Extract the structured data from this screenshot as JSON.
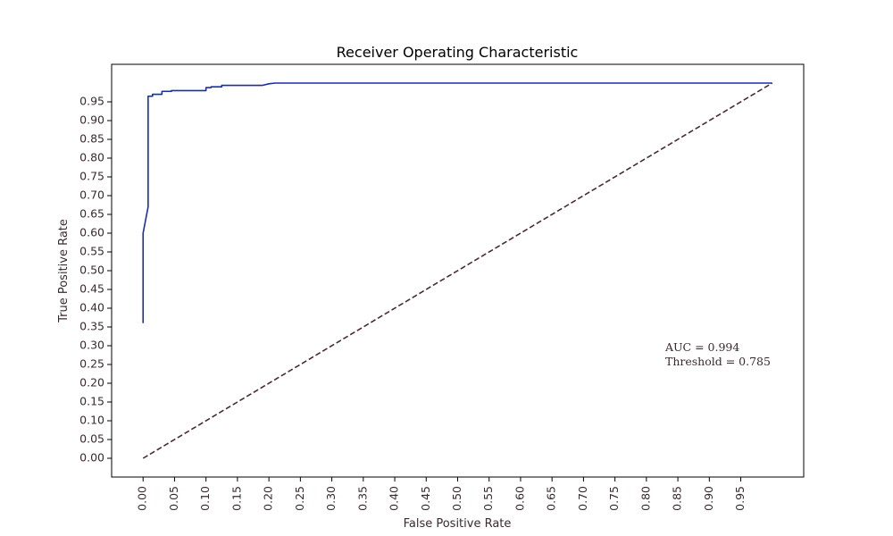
{
  "chart_data": {
    "type": "line",
    "title": "Receiver Operating Characteristic",
    "xlabel": "False Positive Rate",
    "ylabel": "True Positive Rate",
    "xlim": [
      -0.05,
      1.05
    ],
    "ylim": [
      -0.05,
      1.05
    ],
    "xticks": [
      "0.00",
      "0.05",
      "0.10",
      "0.15",
      "0.20",
      "0.25",
      "0.30",
      "0.35",
      "0.40",
      "0.45",
      "0.50",
      "0.55",
      "0.60",
      "0.65",
      "0.70",
      "0.75",
      "0.80",
      "0.85",
      "0.90",
      "0.95"
    ],
    "yticks": [
      "0.00",
      "0.05",
      "0.10",
      "0.15",
      "0.20",
      "0.25",
      "0.30",
      "0.35",
      "0.40",
      "0.45",
      "0.50",
      "0.55",
      "0.60",
      "0.65",
      "0.70",
      "0.75",
      "0.80",
      "0.85",
      "0.90",
      "0.95"
    ],
    "grid": false,
    "series": [
      {
        "style": "solid",
        "color": "#1a2ea8",
        "x": [
          0.0,
          0.0,
          0.008,
          0.008,
          0.015,
          0.015,
          0.03,
          0.03,
          0.045,
          0.045,
          0.1,
          0.1,
          0.108,
          0.108,
          0.125,
          0.125,
          0.19,
          0.2,
          0.21,
          1.0
        ],
        "y": [
          0.36,
          0.6,
          0.67,
          0.965,
          0.965,
          0.97,
          0.97,
          0.978,
          0.978,
          0.98,
          0.98,
          0.988,
          0.988,
          0.99,
          0.99,
          0.994,
          0.994,
          0.998,
          1.0,
          1.0
        ]
      },
      {
        "style": "dashed",
        "color": "#4a2a35",
        "x": [
          0.0,
          1.0
        ],
        "y": [
          0.0,
          1.0
        ]
      }
    ],
    "annotations": [
      "AUC = 0.994",
      "Threshold = 0.785"
    ]
  }
}
